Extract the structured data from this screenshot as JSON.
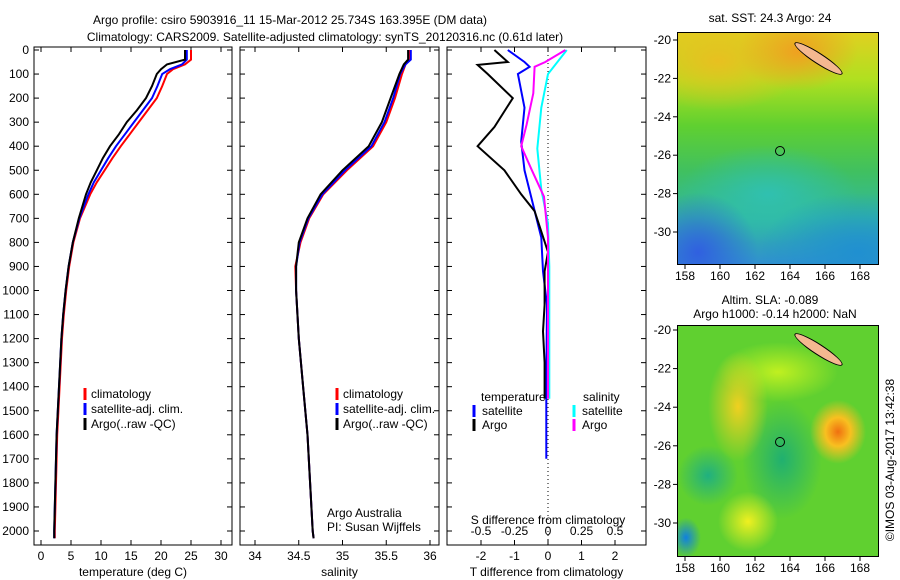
{
  "title_line1": "Argo profile: csiro 5903916_11 15-Mar-2012 25.734S 163.395E (DM data)",
  "title_line2": "Climatology: CARS2009. Satellite-adjusted climatology: synTS_20120316.nc (0.61d later)",
  "colors": {
    "climatology": "#ff0000",
    "satellite": "#0000ff",
    "argo": "#000000",
    "sal_satellite": "#00ffff",
    "sal_argo": "#ff00ff"
  },
  "credits": {
    "line1": "Argo Australia",
    "line2": "PI: Susan Wijffels"
  },
  "copyright": "©IMOS 03-Aug-2017 13:42:38",
  "chart_data": [
    {
      "type": "line",
      "name": "temperature-profile",
      "xlabel": "temperature (deg C)",
      "ylabel": "depth",
      "xlim": [
        -1,
        31
      ],
      "ylim": [
        2060,
        0
      ],
      "xticks": [
        "0",
        "5",
        "10",
        "15",
        "20",
        "25",
        "30"
      ],
      "xtick_values": [
        0,
        5,
        10,
        15,
        20,
        25,
        30
      ],
      "yticks": [
        "0",
        "100",
        "200",
        "300",
        "400",
        "500",
        "600",
        "700",
        "800",
        "900",
        "1000",
        "1100",
        "1200",
        "1300",
        "1400",
        "1500",
        "1600",
        "1700",
        "1800",
        "1900",
        "2000"
      ],
      "legend": [
        "climatology",
        "satellite-adj. clim.",
        "Argo(..raw -QC)"
      ],
      "depth": [
        0,
        40,
        60,
        80,
        100,
        150,
        200,
        250,
        300,
        350,
        400,
        450,
        500,
        550,
        600,
        700,
        800,
        900,
        1000,
        1100,
        1200,
        1300,
        1400,
        1500,
        1600,
        1700,
        1800,
        1900,
        2000,
        2030
      ],
      "series": [
        {
          "name": "climatology",
          "values": [
            25.0,
            25.0,
            24.0,
            22.0,
            21.0,
            20.2,
            19.3,
            17.8,
            16.3,
            14.8,
            13.3,
            11.9,
            10.6,
            9.3,
            8.2,
            6.5,
            5.4,
            4.7,
            4.2,
            3.8,
            3.5,
            3.3,
            3.1,
            2.9,
            2.7,
            2.6,
            2.5,
            2.4,
            2.3,
            2.3
          ]
        },
        {
          "name": "satellite-adj. clim.",
          "values": [
            24.3,
            24.3,
            23.5,
            21.5,
            20.2,
            19.4,
            18.5,
            17.0,
            15.5,
            14.0,
            12.5,
            11.2,
            10.0,
            8.8,
            7.9,
            6.4,
            5.3,
            4.6,
            4.1,
            3.7,
            3.4,
            3.2,
            3.0,
            2.8,
            2.6,
            2.5,
            2.4,
            2.3,
            2.2,
            2.2
          ]
        },
        {
          "name": "Argo(..raw -QC)",
          "values": [
            24.0,
            24.0,
            21.0,
            20.0,
            19.3,
            18.5,
            17.5,
            16.0,
            14.3,
            13.0,
            11.5,
            10.3,
            9.3,
            8.3,
            7.5,
            6.3,
            5.3,
            4.6,
            4.1,
            3.7,
            3.4,
            3.2,
            3.0,
            2.8,
            2.6,
            2.5,
            2.4,
            2.3,
            2.2,
            2.2
          ]
        }
      ]
    },
    {
      "type": "line",
      "name": "salinity-profile",
      "xlabel": "salinity",
      "xlim": [
        33.83,
        36.1
      ],
      "ylim": [
        2060,
        0
      ],
      "xticks": [
        "34",
        "34.5",
        "35",
        "35.5",
        "36"
      ],
      "xtick_values": [
        34,
        34.5,
        35,
        35.5,
        36
      ],
      "legend": [
        "climatology",
        "satellite-adj. clim.",
        "Argo(..raw -QC)"
      ],
      "depth": [
        0,
        40,
        60,
        100,
        200,
        300,
        400,
        500,
        600,
        700,
        800,
        900,
        1000,
        1200,
        1400,
        1600,
        1800,
        2000,
        2030
      ],
      "series": [
        {
          "name": "climatology",
          "values": [
            35.77,
            35.77,
            35.72,
            35.68,
            35.6,
            35.5,
            35.35,
            35.05,
            34.78,
            34.62,
            34.52,
            34.46,
            34.47,
            34.5,
            34.55,
            34.6,
            34.63,
            34.66,
            34.67
          ]
        },
        {
          "name": "satellite-adj. clim.",
          "values": [
            35.78,
            35.78,
            35.72,
            35.66,
            35.58,
            35.48,
            35.33,
            35.03,
            34.77,
            34.61,
            34.51,
            34.47,
            34.47,
            34.5,
            34.55,
            34.6,
            34.63,
            34.66,
            34.67
          ]
        },
        {
          "name": "Argo(..raw -QC)",
          "values": [
            35.75,
            35.75,
            35.7,
            35.65,
            35.55,
            35.45,
            35.3,
            35.0,
            34.75,
            34.6,
            34.5,
            34.47,
            34.47,
            34.5,
            34.55,
            34.6,
            34.63,
            34.66,
            34.67
          ]
        }
      ]
    },
    {
      "type": "line",
      "name": "difference-profile",
      "xlabel": "T difference from climatology",
      "x2label": "S difference from climatology",
      "xlim": [
        -3,
        3
      ],
      "x2lim": [
        -0.75,
        0.75
      ],
      "ylim": [
        2060,
        0
      ],
      "xticks": [
        "-2",
        "-1",
        "0",
        "1",
        "2"
      ],
      "xtick_values": [
        -2,
        -1,
        0,
        1,
        2
      ],
      "x2ticks": [
        "-0.5",
        "-0.25",
        "0",
        "0.25",
        "0.5"
      ],
      "x2tick_values": [
        -0.5,
        -0.25,
        0,
        0.25,
        0.5
      ],
      "legend_titles": [
        "temperature",
        "salinity"
      ],
      "legend": [
        "satellite",
        "Argo",
        "satellite",
        "Argo"
      ],
      "series": [
        {
          "name": "T satellite",
          "axis": "T",
          "depth": [
            0,
            50,
            70,
            100,
            240,
            380,
            500,
            640,
            780,
            920,
            1060,
            1400,
            1700
          ],
          "values": [
            -1.2,
            -0.7,
            -0.55,
            -0.9,
            -0.7,
            -0.8,
            -0.7,
            -0.45,
            -0.2,
            -0.15,
            -0.03,
            -0.05,
            -0.05
          ]
        },
        {
          "name": "T Argo",
          "axis": "T",
          "depth": [
            0,
            50,
            62,
            100,
            200,
            320,
            400,
            500,
            600,
            670,
            840,
            920,
            1060,
            1170,
            1300,
            1450
          ],
          "values": [
            -1.6,
            -1.2,
            -2.1,
            -1.8,
            -1.05,
            -1.6,
            -2.1,
            -1.3,
            -0.8,
            -0.4,
            0.0,
            -0.1,
            -0.1,
            -0.15,
            -0.1,
            -0.1
          ]
        },
        {
          "name": "S satellite",
          "axis": "S",
          "depth": [
            0,
            100,
            240,
            410,
            580,
            720,
            900,
            1450
          ],
          "values": [
            0.14,
            0.0,
            -0.05,
            -0.08,
            -0.05,
            0.0,
            0.01,
            0.01
          ]
        },
        {
          "name": "S Argo",
          "axis": "S",
          "depth": [
            0,
            50,
            70,
            180,
            310,
            400,
            500,
            610,
            780,
            1450
          ],
          "values": [
            0.13,
            -0.02,
            -0.1,
            -0.11,
            -0.16,
            -0.2,
            -0.12,
            -0.03,
            0.0,
            0.0
          ]
        }
      ]
    },
    {
      "type": "heatmap",
      "name": "sst-map",
      "title": "sat. SST: 24.3 Argo: 24",
      "xlim": [
        157.6,
        169.1
      ],
      "ylim": [
        -31.7,
        -19.6
      ],
      "xticks": [
        "158",
        "160",
        "162",
        "164",
        "166",
        "168"
      ],
      "xtick_values": [
        158,
        160,
        162,
        164,
        166,
        168
      ],
      "yticks": [
        "-20",
        "-22",
        "-24",
        "-26",
        "-28",
        "-30"
      ],
      "ytick_values": [
        -20,
        -22,
        -24,
        -26,
        -28,
        -30
      ],
      "profile_location": {
        "lon": 163.395,
        "lat": -25.734
      }
    },
    {
      "type": "heatmap",
      "name": "sla-map",
      "title_line1": "Altim. SLA: -0.089",
      "title_line2": "Argo h1000: -0.14 h2000: NaN",
      "xlim": [
        157.6,
        169.1
      ],
      "ylim": [
        -31.7,
        -19.6
      ],
      "xticks": [
        "158",
        "160",
        "162",
        "164",
        "166",
        "168"
      ],
      "xtick_values": [
        158,
        160,
        162,
        164,
        166,
        168
      ],
      "yticks": [
        "-20",
        "-22",
        "-24",
        "-26",
        "-28",
        "-30"
      ],
      "ytick_values": [
        -20,
        -22,
        -24,
        -26,
        -28,
        -30
      ],
      "profile_location": {
        "lon": 163.395,
        "lat": -25.734
      }
    }
  ]
}
